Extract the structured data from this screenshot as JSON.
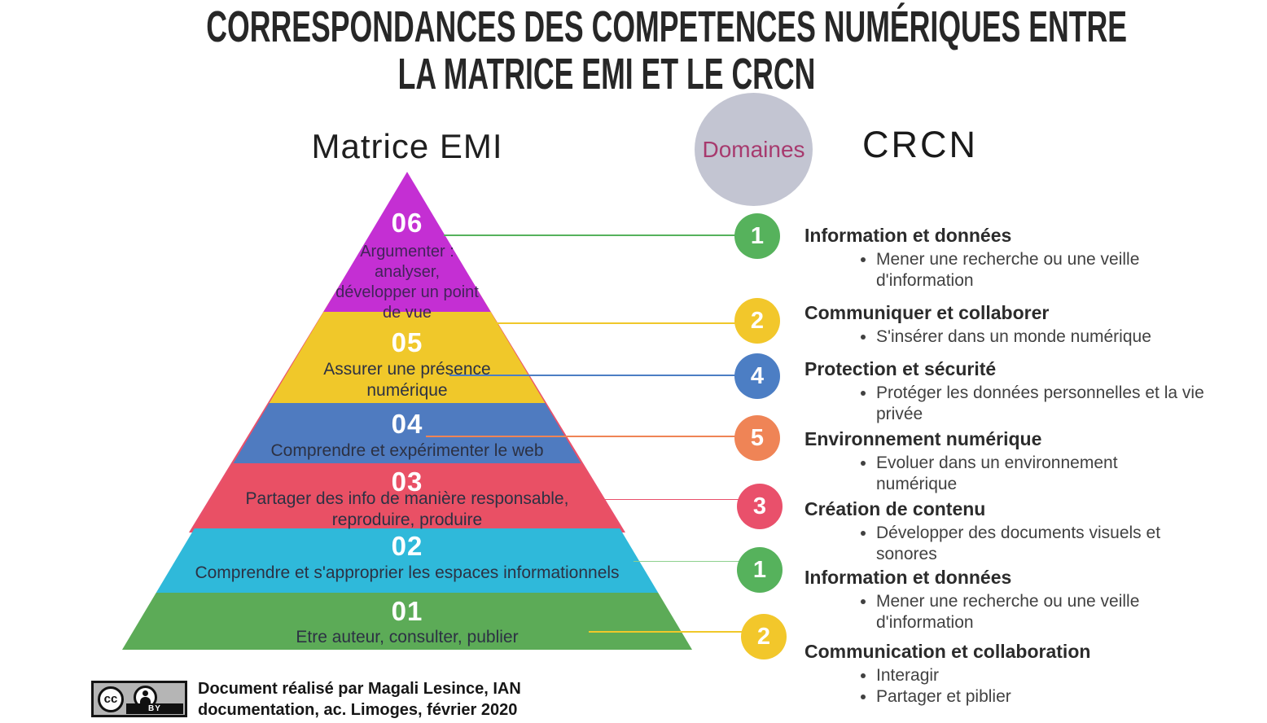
{
  "title": {
    "line1": "CORRESPONDANCES DES COMPETENCES NUMÉRIQUES ENTRE",
    "line2": "LA MATRICE EMI ET LE CRCN"
  },
  "emi": {
    "heading": "Matrice EMI",
    "levels": [
      {
        "num": "06",
        "label": "Argumenter : analyser, développer un point de vue",
        "color": "#c42fd3"
      },
      {
        "num": "05",
        "label": "Assurer une présence numérique",
        "color": "#f0c82a"
      },
      {
        "num": "04",
        "label": "Comprendre et expérimenter le web",
        "color": "#4f7bc0"
      },
      {
        "num": "03",
        "label": "Partager des info de manière responsable, reproduire, produire",
        "color": "#e95065"
      },
      {
        "num": "02",
        "label": "Comprendre et s'approprier les espaces informationnels",
        "color": "#2fb9da"
      },
      {
        "num": "01",
        "label": "Etre auteur, consulter, publier",
        "color": "#5cab57"
      }
    ]
  },
  "domains": {
    "label": "Domaines",
    "circle_color": "#c3c5d2",
    "label_color": "#a73a6e"
  },
  "crcn": {
    "heading": "CRCN",
    "items": [
      {
        "num": "1",
        "color": "#56b25c",
        "title": "Information et données",
        "bullets": [
          "Mener une recherche ou une veille d'information"
        ]
      },
      {
        "num": "2",
        "color": "#f2c72b",
        "title": "Communiquer et collaborer",
        "bullets": [
          "S'insérer dans un monde numérique"
        ]
      },
      {
        "num": "4",
        "color": "#4c7ec4",
        "title": "Protection et sécurité",
        "bullets": [
          "Protéger les données personnelles et la vie privée"
        ]
      },
      {
        "num": "5",
        "color": "#ef8456",
        "title": "Environnement numérique",
        "bullets": [
          "Evoluer dans un environnement numérique"
        ]
      },
      {
        "num": "3",
        "color": "#e9506b",
        "title": "Création de contenu",
        "bullets": [
          "Développer des documents visuels et sonores"
        ]
      },
      {
        "num": "1",
        "color": "#56b25c",
        "title": "Information et données",
        "bullets": [
          "Mener une recherche ou une veille d'information"
        ]
      },
      {
        "num": "2",
        "color": "#f2c72b",
        "title": "Communication et collaboration",
        "bullets": [
          "Interagir",
          "Partager et piblier"
        ]
      }
    ]
  },
  "footer": {
    "badge_cc": "cc",
    "badge_by": "BY",
    "credit_line1": "Document réalisé par Magali Lesince, IAN",
    "credit_line2": "documentation, ac. Limoges, février 2020"
  }
}
